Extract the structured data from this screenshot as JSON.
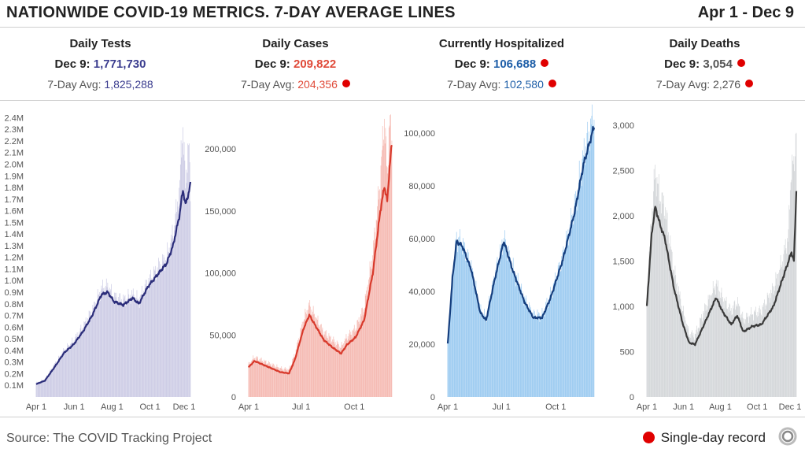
{
  "header": {
    "title": "NATIONWIDE COVID-19 METRICS. 7-DAY AVERAGE LINES",
    "date_range": "Apr 1 - Dec 9"
  },
  "panels": [
    {
      "title": "Daily Tests",
      "day_label": "Dec 9: ",
      "day_value": "1,771,730",
      "avg_label": "7-Day Avg: ",
      "avg_value": "1,825,288",
      "value_color": "#3b3d8f",
      "day_record": false,
      "avg_record": false
    },
    {
      "title": "Daily Cases",
      "day_label": "Dec 9: ",
      "day_value": "209,822",
      "avg_label": "7-Day Avg: ",
      "avg_value": "204,356",
      "value_color": "#e04b3a",
      "day_record": false,
      "avg_record": true
    },
    {
      "title": "Currently Hospitalized",
      "day_label": "Dec 9: ",
      "day_value": "106,688",
      "avg_label": "7-Day Avg: ",
      "avg_value": "102,580",
      "value_color": "#1f5fa8",
      "day_record": true,
      "avg_record": true
    },
    {
      "title": "Daily Deaths",
      "day_label": "Dec 9: ",
      "day_value": "3,054",
      "avg_label": "7-Day Avg: ",
      "avg_value": "2,276",
      "value_color": "#555555",
      "day_record": true,
      "avg_record": true
    }
  ],
  "footer": {
    "source": "Source: The COVID Tracking Project",
    "legend_label": "Single-day record",
    "record_color": "#e00000"
  },
  "chart_data": [
    {
      "type": "bar",
      "title": "Daily Tests",
      "x_ticks": [
        "Apr 1",
        "Jun 1",
        "Aug 1",
        "Oct 1",
        "Dec 1"
      ],
      "x_tick_days": [
        0,
        61,
        122,
        183,
        244
      ],
      "y_ticks": [
        "0.1M",
        "0.2M",
        "0.3M",
        "0.4M",
        "0.5M",
        "0.6M",
        "0.7M",
        "0.8M",
        "0.9M",
        "1.0M",
        "1.1M",
        "1.2M",
        "1.3M",
        "1.4M",
        "1.5M",
        "1.6M",
        "1.7M",
        "1.8M",
        "1.9M",
        "2.0M",
        "2.1M",
        "2.2M",
        "2.3M",
        "2.4M"
      ],
      "y_tick_values": [
        100000,
        200000,
        300000,
        400000,
        500000,
        600000,
        700000,
        800000,
        900000,
        1000000,
        1100000,
        1200000,
        1300000,
        1400000,
        1500000,
        1600000,
        1700000,
        1800000,
        1900000,
        2000000,
        2100000,
        2200000,
        2300000,
        2400000
      ],
      "ylim": [
        0,
        2450000
      ],
      "bar_color": "#c9c8e3",
      "line_color": "#2b2d7a",
      "avg_anchors": [
        [
          0,
          110000
        ],
        [
          14,
          140000
        ],
        [
          30,
          260000
        ],
        [
          45,
          380000
        ],
        [
          60,
          450000
        ],
        [
          75,
          560000
        ],
        [
          90,
          700000
        ],
        [
          105,
          880000
        ],
        [
          115,
          900000
        ],
        [
          125,
          820000
        ],
        [
          140,
          790000
        ],
        [
          155,
          850000
        ],
        [
          165,
          800000
        ],
        [
          180,
          950000
        ],
        [
          195,
          1050000
        ],
        [
          210,
          1150000
        ],
        [
          220,
          1300000
        ],
        [
          230,
          1550000
        ],
        [
          236,
          1780000
        ],
        [
          240,
          1650000
        ],
        [
          245,
          1750000
        ],
        [
          248,
          1825288
        ]
      ],
      "bar_anchors": [
        [
          0,
          120000
        ],
        [
          14,
          150000
        ],
        [
          30,
          280000
        ],
        [
          45,
          400000
        ],
        [
          60,
          480000
        ],
        [
          75,
          600000
        ],
        [
          90,
          740000
        ],
        [
          105,
          930000
        ],
        [
          115,
          950000
        ],
        [
          125,
          860000
        ],
        [
          140,
          830000
        ],
        [
          155,
          880000
        ],
        [
          165,
          830000
        ],
        [
          180,
          990000
        ],
        [
          195,
          1100000
        ],
        [
          210,
          1200000
        ],
        [
          220,
          1400000
        ],
        [
          230,
          1750000
        ],
        [
          236,
          2350000
        ],
        [
          240,
          1800000
        ],
        [
          245,
          2200000
        ],
        [
          248,
          1771730
        ]
      ]
    },
    {
      "type": "bar",
      "title": "Daily Cases",
      "x_ticks": [
        "Apr 1",
        "Jul 1",
        "Oct 1"
      ],
      "x_tick_days": [
        0,
        91,
        183
      ],
      "y_ticks": [
        "0",
        "50,000",
        "100,000",
        "150,000",
        "200,000"
      ],
      "y_tick_values": [
        0,
        50000,
        100000,
        150000,
        200000
      ],
      "ylim": [
        0,
        230000
      ],
      "bar_color": "#f4b3ab",
      "line_color": "#d8392b",
      "avg_anchors": [
        [
          0,
          24000
        ],
        [
          10,
          29000
        ],
        [
          25,
          26000
        ],
        [
          40,
          23000
        ],
        [
          55,
          20000
        ],
        [
          70,
          19000
        ],
        [
          80,
          30000
        ],
        [
          95,
          55000
        ],
        [
          105,
          66000
        ],
        [
          115,
          58000
        ],
        [
          130,
          46000
        ],
        [
          145,
          40000
        ],
        [
          160,
          35000
        ],
        [
          170,
          42000
        ],
        [
          185,
          48000
        ],
        [
          200,
          62000
        ],
        [
          215,
          100000
        ],
        [
          228,
          150000
        ],
        [
          235,
          170000
        ],
        [
          240,
          158000
        ],
        [
          244,
          185000
        ],
        [
          248,
          204356
        ]
      ],
      "bar_anchors": [
        [
          0,
          26000
        ],
        [
          10,
          32000
        ],
        [
          25,
          29000
        ],
        [
          40,
          26000
        ],
        [
          55,
          23000
        ],
        [
          70,
          22000
        ],
        [
          80,
          34000
        ],
        [
          95,
          62000
        ],
        [
          105,
          74000
        ],
        [
          115,
          65000
        ],
        [
          130,
          52000
        ],
        [
          145,
          46000
        ],
        [
          160,
          40000
        ],
        [
          170,
          48000
        ],
        [
          185,
          55000
        ],
        [
          200,
          72000
        ],
        [
          215,
          115000
        ],
        [
          228,
          175000
        ],
        [
          235,
          225000
        ],
        [
          240,
          180000
        ],
        [
          244,
          220000
        ],
        [
          248,
          209822
        ]
      ]
    },
    {
      "type": "bar",
      "title": "Currently Hospitalized",
      "x_ticks": [
        "Apr 1",
        "Jul 1",
        "Oct 1"
      ],
      "x_tick_days": [
        0,
        91,
        183
      ],
      "y_ticks": [
        "0",
        "20,000",
        "40,000",
        "60,000",
        "80,000",
        "100,000"
      ],
      "y_tick_values": [
        0,
        20000,
        40000,
        60000,
        80000,
        100000
      ],
      "ylim": [
        0,
        108000
      ],
      "bar_color": "#93c6ef",
      "line_color": "#153e7e",
      "avg_anchors": [
        [
          0,
          20000
        ],
        [
          8,
          45000
        ],
        [
          15,
          59000
        ],
        [
          25,
          57000
        ],
        [
          40,
          48000
        ],
        [
          55,
          32000
        ],
        [
          65,
          29000
        ],
        [
          80,
          45000
        ],
        [
          95,
          59000
        ],
        [
          110,
          48000
        ],
        [
          130,
          36000
        ],
        [
          145,
          30000
        ],
        [
          160,
          30000
        ],
        [
          175,
          38000
        ],
        [
          195,
          52000
        ],
        [
          215,
          70000
        ],
        [
          230,
          88000
        ],
        [
          248,
          102580
        ]
      ],
      "bar_anchors": [
        [
          0,
          20500
        ],
        [
          8,
          46000
        ],
        [
          15,
          60000
        ],
        [
          25,
          58000
        ],
        [
          40,
          49000
        ],
        [
          55,
          33000
        ],
        [
          65,
          30000
        ],
        [
          80,
          46000
        ],
        [
          95,
          60000
        ],
        [
          110,
          49000
        ],
        [
          130,
          37000
        ],
        [
          145,
          31000
        ],
        [
          160,
          31000
        ],
        [
          175,
          39000
        ],
        [
          195,
          53000
        ],
        [
          215,
          72000
        ],
        [
          230,
          91000
        ],
        [
          248,
          106688
        ]
      ]
    },
    {
      "type": "bar",
      "title": "Daily Deaths",
      "x_ticks": [
        "Apr 1",
        "Jun 1",
        "Aug 1",
        "Oct 1",
        "Dec 1"
      ],
      "x_tick_days": [
        0,
        61,
        122,
        183,
        244
      ],
      "y_ticks": [
        "0",
        "500",
        "1,000",
        "1,500",
        "2,000",
        "2,500",
        "3,000"
      ],
      "y_tick_values": [
        0,
        500,
        1000,
        1500,
        2000,
        2500,
        3000
      ],
      "ylim": [
        0,
        3150
      ],
      "bar_color": "#d0d3d6",
      "line_color": "#3a3a3a",
      "avg_anchors": [
        [
          0,
          1000
        ],
        [
          8,
          1800
        ],
        [
          14,
          2100
        ],
        [
          22,
          1900
        ],
        [
          30,
          1750
        ],
        [
          45,
          1200
        ],
        [
          60,
          800
        ],
        [
          70,
          600
        ],
        [
          80,
          580
        ],
        [
          95,
          800
        ],
        [
          115,
          1100
        ],
        [
          125,
          950
        ],
        [
          140,
          800
        ],
        [
          150,
          900
        ],
        [
          160,
          720
        ],
        [
          175,
          780
        ],
        [
          190,
          800
        ],
        [
          210,
          1000
        ],
        [
          225,
          1300
        ],
        [
          235,
          1500
        ],
        [
          240,
          1600
        ],
        [
          244,
          1500
        ],
        [
          248,
          2276
        ]
      ],
      "bar_anchors": [
        [
          0,
          1100
        ],
        [
          8,
          2000
        ],
        [
          14,
          2500
        ],
        [
          22,
          2200
        ],
        [
          30,
          2100
        ],
        [
          45,
          1400
        ],
        [
          60,
          950
        ],
        [
          70,
          700
        ],
        [
          80,
          680
        ],
        [
          95,
          950
        ],
        [
          115,
          1250
        ],
        [
          125,
          1100
        ],
        [
          140,
          950
        ],
        [
          150,
          1050
        ],
        [
          160,
          850
        ],
        [
          175,
          920
        ],
        [
          190,
          950
        ],
        [
          210,
          1200
        ],
        [
          225,
          1500
        ],
        [
          235,
          1800
        ],
        [
          240,
          2600
        ],
        [
          244,
          2500
        ],
        [
          248,
          3054
        ]
      ]
    }
  ]
}
